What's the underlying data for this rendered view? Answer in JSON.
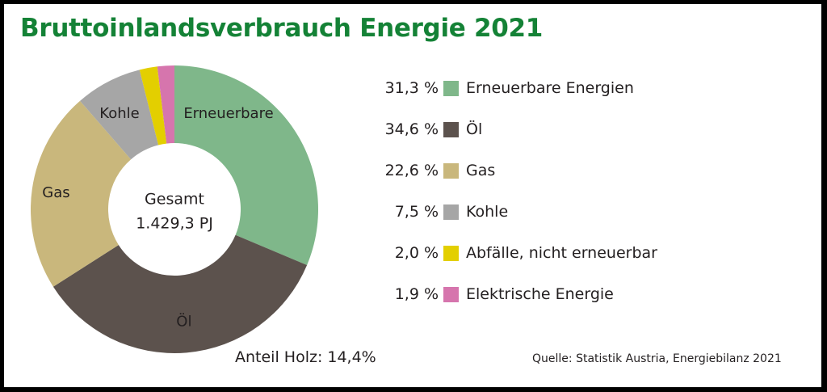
{
  "title": "Bruttoinlandsverbrauch Energie 2021",
  "chart_data": {
    "type": "pie",
    "donut": true,
    "center_text": [
      "Gesamt",
      "1.429,3 PJ"
    ],
    "slices": [
      {
        "name": "Erneuerbare Energien",
        "label": "Erneuerbare",
        "value": 31.3,
        "value_text": "31,3 %",
        "color": "#7fb78a",
        "label_color": "#231f20"
      },
      {
        "name": "Öl",
        "label": "Öl",
        "value": 34.6,
        "value_text": "34,6 %",
        "color": "#5c524d",
        "label_color": "#ffffff"
      },
      {
        "name": "Gas",
        "label": "Gas",
        "value": 22.6,
        "value_text": "22,6 %",
        "color": "#c9b77c",
        "label_color": "#231f20"
      },
      {
        "name": "Kohle",
        "label": "Kohle",
        "value": 7.5,
        "value_text": "7,5 %",
        "color": "#a6a6a6",
        "label_color": "#231f20"
      },
      {
        "name": "Abfälle, nicht erneuerbar",
        "label": "",
        "value": 2.0,
        "value_text": "2,0 %",
        "color": "#e3cf00",
        "label_color": "#231f20"
      },
      {
        "name": "Elektrische Energie",
        "label": "",
        "value": 1.9,
        "value_text": "1,9 %",
        "color": "#d675ad",
        "label_color": "#231f20"
      }
    ],
    "legend_position": "right"
  },
  "footnote": "Anteil Holz: 14,4%",
  "source": "Quelle: Statistik Austria, Energiebilanz 2021"
}
